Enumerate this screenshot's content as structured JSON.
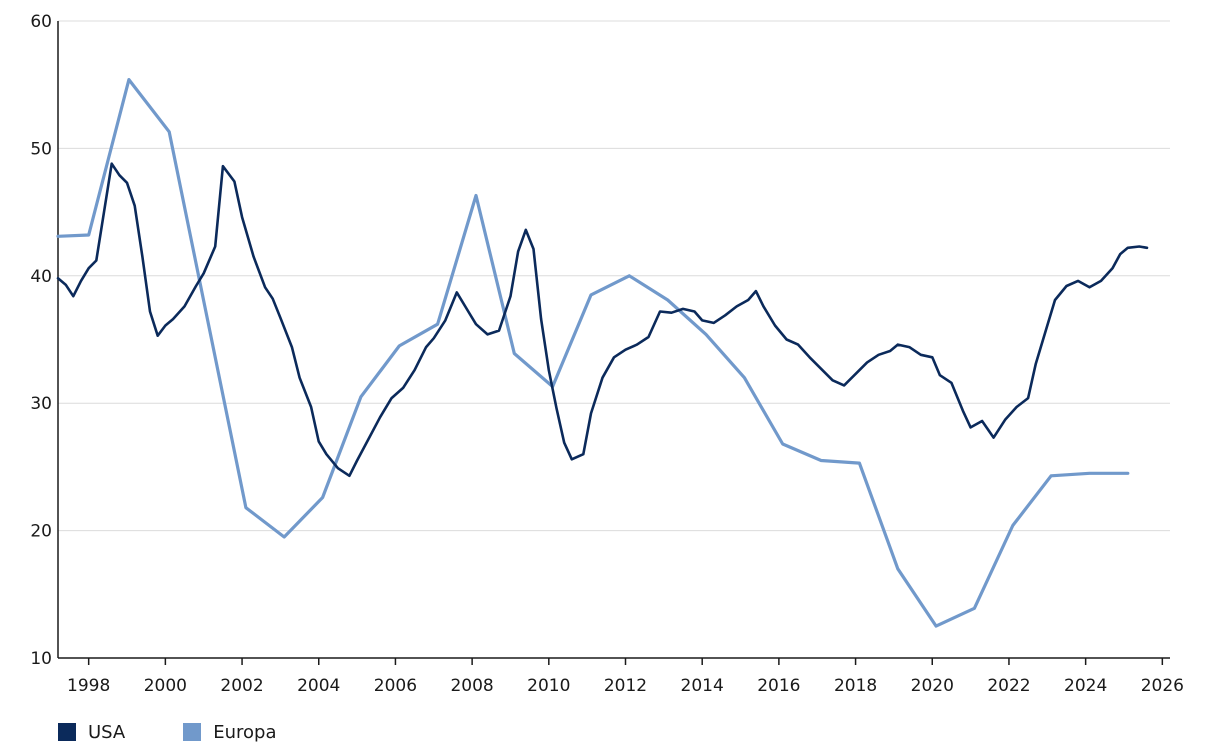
{
  "chart_data": {
    "type": "line",
    "title": "",
    "xlabel": "",
    "ylabel": "",
    "xlim": [
      1997.2,
      2026.2
    ],
    "ylim": [
      10,
      60
    ],
    "x_ticks": [
      1998,
      2000,
      2002,
      2004,
      2006,
      2008,
      2010,
      2012,
      2014,
      2016,
      2018,
      2020,
      2022,
      2024,
      2026
    ],
    "y_ticks": [
      10,
      20,
      30,
      40,
      50,
      60
    ],
    "grid": "horizontal",
    "legend_position": "bottom-left",
    "series": [
      {
        "name": "USA",
        "color": "#0b2a5b",
        "points": [
          [
            1997.2,
            39.8
          ],
          [
            1997.4,
            39.3
          ],
          [
            1997.6,
            38.4
          ],
          [
            1997.8,
            39.6
          ],
          [
            1998.0,
            40.6
          ],
          [
            1998.2,
            41.2
          ],
          [
            1998.4,
            45.0
          ],
          [
            1998.6,
            48.8
          ],
          [
            1998.8,
            47.9
          ],
          [
            1999.0,
            47.3
          ],
          [
            1999.2,
            45.5
          ],
          [
            1999.4,
            41.5
          ],
          [
            1999.6,
            37.2
          ],
          [
            1999.8,
            35.3
          ],
          [
            2000.0,
            36.1
          ],
          [
            2000.2,
            36.6
          ],
          [
            2000.5,
            37.6
          ],
          [
            2000.8,
            39.2
          ],
          [
            2001.0,
            40.2
          ],
          [
            2001.3,
            42.3
          ],
          [
            2001.5,
            48.6
          ],
          [
            2001.8,
            47.4
          ],
          [
            2002.0,
            44.6
          ],
          [
            2002.3,
            41.5
          ],
          [
            2002.6,
            39.1
          ],
          [
            2002.8,
            38.2
          ],
          [
            2003.0,
            36.7
          ],
          [
            2003.3,
            34.4
          ],
          [
            2003.5,
            32.0
          ],
          [
            2003.8,
            29.7
          ],
          [
            2004.0,
            27.0
          ],
          [
            2004.2,
            26.0
          ],
          [
            2004.5,
            24.9
          ],
          [
            2004.8,
            24.3
          ],
          [
            2005.0,
            25.5
          ],
          [
            2005.3,
            27.2
          ],
          [
            2005.6,
            28.9
          ],
          [
            2005.9,
            30.4
          ],
          [
            2006.2,
            31.2
          ],
          [
            2006.5,
            32.6
          ],
          [
            2006.8,
            34.4
          ],
          [
            2007.0,
            35.1
          ],
          [
            2007.3,
            36.5
          ],
          [
            2007.6,
            38.7
          ],
          [
            2007.9,
            37.2
          ],
          [
            2008.1,
            36.2
          ],
          [
            2008.4,
            35.4
          ],
          [
            2008.7,
            35.7
          ],
          [
            2009.0,
            38.4
          ],
          [
            2009.2,
            41.9
          ],
          [
            2009.4,
            43.6
          ],
          [
            2009.6,
            42.1
          ],
          [
            2009.8,
            36.6
          ],
          [
            2010.0,
            32.6
          ],
          [
            2010.2,
            29.6
          ],
          [
            2010.4,
            26.9
          ],
          [
            2010.6,
            25.6
          ],
          [
            2010.9,
            26.0
          ],
          [
            2011.1,
            29.2
          ],
          [
            2011.4,
            32.0
          ],
          [
            2011.7,
            33.6
          ],
          [
            2012.0,
            34.2
          ],
          [
            2012.3,
            34.6
          ],
          [
            2012.6,
            35.2
          ],
          [
            2012.9,
            37.2
          ],
          [
            2013.2,
            37.1
          ],
          [
            2013.5,
            37.4
          ],
          [
            2013.8,
            37.2
          ],
          [
            2014.0,
            36.5
          ],
          [
            2014.3,
            36.3
          ],
          [
            2014.6,
            36.9
          ],
          [
            2014.9,
            37.6
          ],
          [
            2015.2,
            38.1
          ],
          [
            2015.4,
            38.8
          ],
          [
            2015.6,
            37.6
          ],
          [
            2015.9,
            36.1
          ],
          [
            2016.2,
            35.0
          ],
          [
            2016.5,
            34.6
          ],
          [
            2016.8,
            33.6
          ],
          [
            2017.1,
            32.7
          ],
          [
            2017.4,
            31.8
          ],
          [
            2017.7,
            31.4
          ],
          [
            2018.0,
            32.3
          ],
          [
            2018.3,
            33.2
          ],
          [
            2018.6,
            33.8
          ],
          [
            2018.9,
            34.1
          ],
          [
            2019.1,
            34.6
          ],
          [
            2019.4,
            34.4
          ],
          [
            2019.7,
            33.8
          ],
          [
            2020.0,
            33.6
          ],
          [
            2020.2,
            32.2
          ],
          [
            2020.5,
            31.6
          ],
          [
            2020.8,
            29.4
          ],
          [
            2021.0,
            28.1
          ],
          [
            2021.3,
            28.6
          ],
          [
            2021.6,
            27.3
          ],
          [
            2021.9,
            28.7
          ],
          [
            2022.2,
            29.7
          ],
          [
            2022.5,
            30.4
          ],
          [
            2022.7,
            33.1
          ],
          [
            2023.0,
            36.1
          ],
          [
            2023.2,
            38.1
          ],
          [
            2023.5,
            39.2
          ],
          [
            2023.8,
            39.6
          ],
          [
            2024.1,
            39.1
          ],
          [
            2024.4,
            39.6
          ],
          [
            2024.7,
            40.6
          ],
          [
            2024.9,
            41.7
          ],
          [
            2025.1,
            42.2
          ],
          [
            2025.4,
            42.3
          ],
          [
            2025.6,
            42.2
          ]
        ]
      },
      {
        "name": "Europa",
        "color": "#7199cb",
        "points": [
          [
            1997.2,
            43.1
          ],
          [
            1998.0,
            43.2
          ],
          [
            1999.05,
            55.4
          ],
          [
            2000.1,
            51.3
          ],
          [
            2002.1,
            21.8
          ],
          [
            2003.1,
            19.5
          ],
          [
            2004.1,
            22.6
          ],
          [
            2005.1,
            30.5
          ],
          [
            2006.1,
            34.5
          ],
          [
            2007.1,
            36.2
          ],
          [
            2008.1,
            46.3
          ],
          [
            2009.1,
            33.9
          ],
          [
            2010.1,
            31.3
          ],
          [
            2011.1,
            38.5
          ],
          [
            2012.1,
            40.0
          ],
          [
            2013.1,
            38.1
          ],
          [
            2014.1,
            35.4
          ],
          [
            2015.1,
            32.0
          ],
          [
            2016.1,
            26.8
          ],
          [
            2017.1,
            25.5
          ],
          [
            2018.1,
            25.3
          ],
          [
            2019.1,
            17.0
          ],
          [
            2020.1,
            12.5
          ],
          [
            2021.1,
            13.9
          ],
          [
            2022.1,
            20.4
          ],
          [
            2023.1,
            24.3
          ],
          [
            2024.1,
            24.5
          ],
          [
            2025.1,
            24.5
          ]
        ]
      }
    ]
  }
}
